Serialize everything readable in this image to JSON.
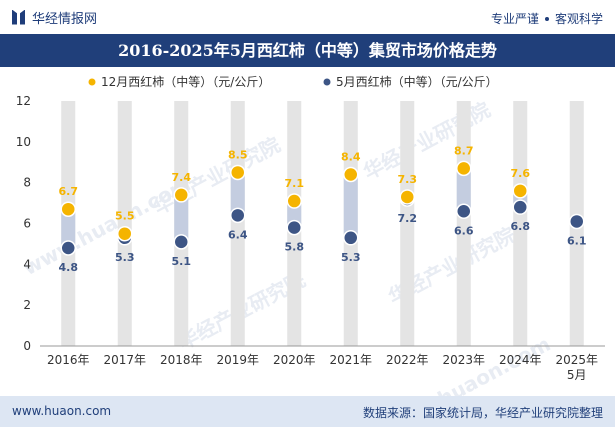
{
  "header": {
    "logo_text": "华经情报网",
    "tagline_1": "专业严谨",
    "tagline_2": "客观科学"
  },
  "footer": {
    "website": "www.huaon.com",
    "source": "数据来源：国家统计局，华经产业研究院整理"
  },
  "watermarks": [
    "华经产业研究院",
    "华经产业研究院",
    "华经产业研究院",
    "华经产业研究院",
    "www.huaon.com",
    "www.huaon.com"
  ],
  "colors": {
    "series_a": "#f5b400",
    "series_b": "#3d5585",
    "band": "#e4e4e4",
    "connector": "#c4cde0",
    "label_b": "#3d5585",
    "label_a": "#f5b400"
  },
  "chart_data": {
    "type": "dot",
    "title": "2016-2025年5月西红柿（中等）集贸市场价格走势",
    "categories": [
      "2016年",
      "2017年",
      "2018年",
      "2019年",
      "2020年",
      "2021年",
      "2022年",
      "2023年",
      "2024年",
      "2025年\n5月"
    ],
    "ylim": [
      0,
      12
    ],
    "yticks": [
      0,
      2,
      4,
      6,
      8,
      10,
      12
    ],
    "legend_position": "top-center",
    "series": [
      {
        "name": "12月西红柿（中等）（元/公斤）",
        "values": [
          6.7,
          5.5,
          7.4,
          8.5,
          7.1,
          8.4,
          7.3,
          8.7,
          7.6,
          null
        ]
      },
      {
        "name": "5月西红柿（中等）（元/公斤）",
        "values": [
          4.8,
          5.3,
          5.1,
          6.4,
          5.8,
          5.3,
          7.2,
          6.6,
          6.8,
          6.1
        ]
      }
    ]
  }
}
